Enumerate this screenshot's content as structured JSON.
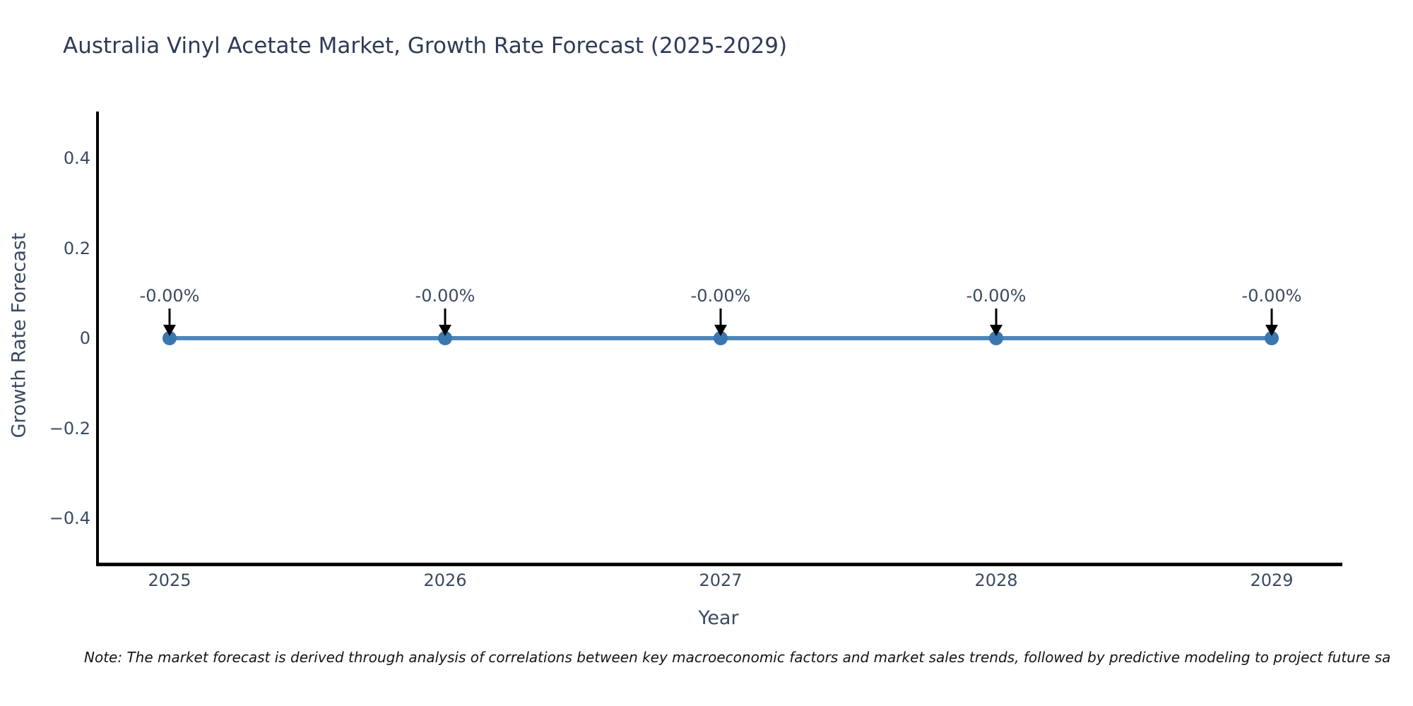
{
  "chart_data": {
    "type": "line",
    "title": "Australia Vinyl Acetate Market, Growth Rate Forecast (2025-2029)",
    "xlabel": "Year",
    "ylabel": "Growth Rate Forecast",
    "categories": [
      "2025",
      "2026",
      "2027",
      "2028",
      "2029"
    ],
    "x": [
      2025,
      2026,
      2027,
      2028,
      2029
    ],
    "values": [
      0,
      0,
      0,
      0,
      0
    ],
    "point_labels": [
      "-0.00%",
      "-0.00%",
      "-0.00%",
      "-0.00%",
      "-0.00%"
    ],
    "ylim": [
      -0.5,
      0.5
    ],
    "yticks": [
      0.4,
      0.2,
      0,
      -0.2,
      -0.4
    ],
    "ytick_labels": [
      "0.4",
      "0.2",
      "0",
      "−0.2",
      "−0.4"
    ],
    "grid": false,
    "legend_position": "none",
    "line_color": "#4d86b8",
    "marker_color": "#3a77b1",
    "arrow_color": "#000000"
  },
  "note": "Note: The market forecast is derived through analysis of correlations between key macroeconomic factors and market sales trends, followed by predictive modeling to project future sa",
  "colors": {
    "background": "#ffffff",
    "title_text": "#2e3b56",
    "axis_text": "#3b4a60",
    "spine": "#000000",
    "note_text": "#141414"
  }
}
